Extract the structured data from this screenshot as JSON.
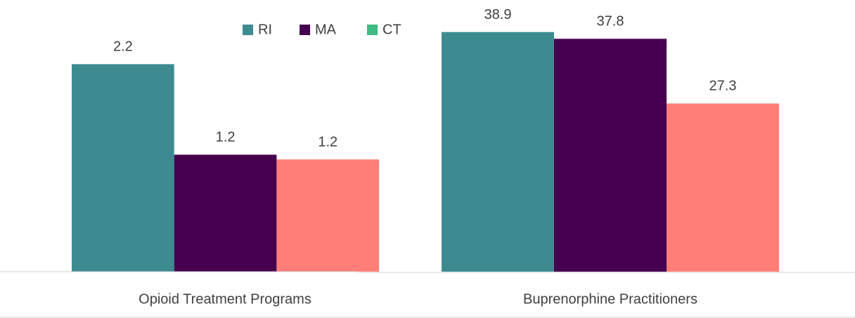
{
  "chart_data": {
    "type": "bar",
    "categories": [
      "Opioid Treatment Programs",
      "Buprenorphine Practitioners"
    ],
    "ylim_by_category": [
      [
        0,
        2.88
      ],
      [
        0,
        44.1
      ]
    ],
    "series": [
      {
        "name": "RI",
        "color": "#3d8b91",
        "values": [
          2.2,
          38.9
        ]
      },
      {
        "name": "MA",
        "color": "#46004f",
        "values": [
          1.24,
          37.8
        ],
        "value_labels": [
          "1.2",
          "37.8"
        ]
      },
      {
        "name": "CT",
        "color": "#ff7f78",
        "legend_color": "#3dbb80",
        "values": [
          1.19,
          27.3
        ],
        "value_labels": [
          "1.2",
          "27.3"
        ]
      }
    ]
  }
}
